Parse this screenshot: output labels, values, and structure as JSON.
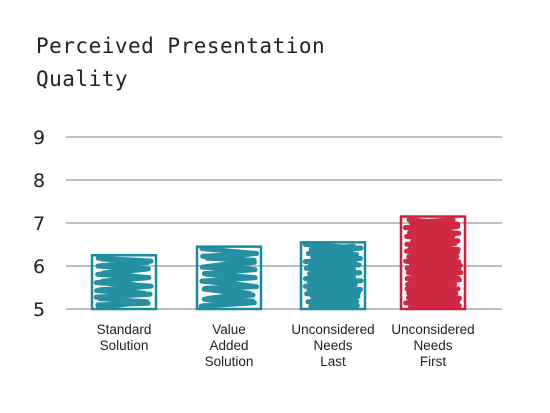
{
  "chart_data": {
    "type": "bar",
    "title_lines": [
      "Perceived Presentation",
      "Quality"
    ],
    "categories": [
      [
        "Standard",
        "Solution"
      ],
      [
        "Value",
        "Added",
        "Solution"
      ],
      [
        "Unconsidered",
        "Needs",
        "Last"
      ],
      [
        "Unconsidered",
        "Needs",
        "First"
      ]
    ],
    "values": [
      6.25,
      6.45,
      6.55,
      7.15
    ],
    "bar_colors": [
      "#1a8a9e",
      "#1a8a9e",
      "#1a8a9e",
      "#cc1f3a"
    ],
    "ylim": [
      5,
      9
    ],
    "yticks": [
      "5",
      "6",
      "7",
      "8",
      "9"
    ],
    "grid": true,
    "xlabel": "",
    "ylabel": ""
  }
}
